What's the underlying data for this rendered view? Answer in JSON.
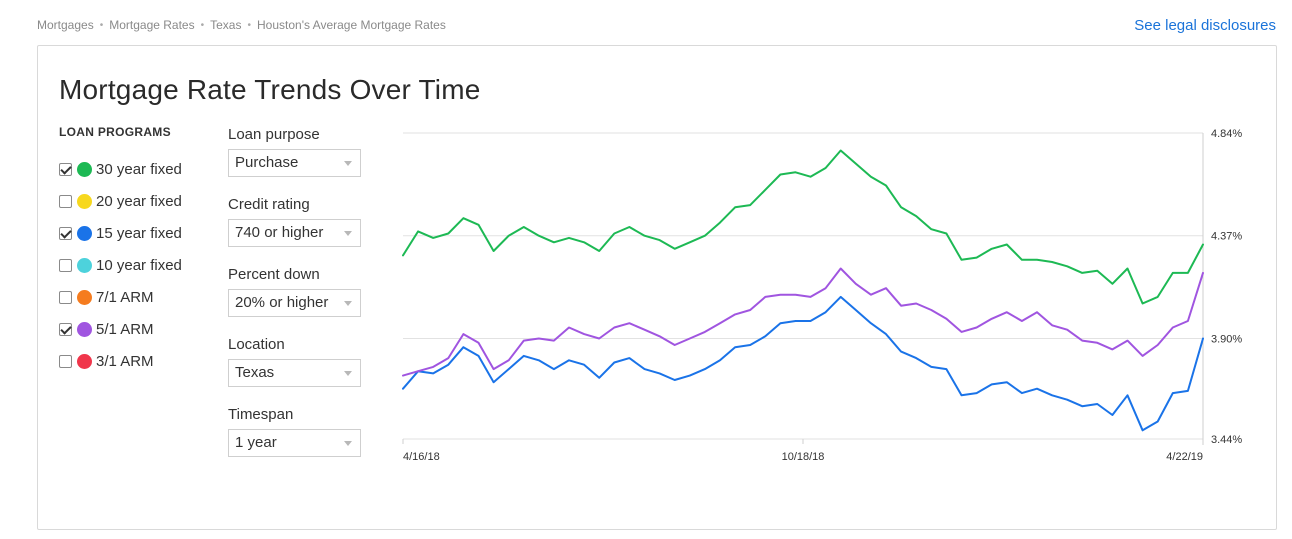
{
  "breadcrumb": [
    "Mortgages",
    "Mortgage Rates",
    "Texas",
    "Houston's Average Mortgage Rates"
  ],
  "legal_link": "See legal disclosures",
  "title": "Mortgage Rate Trends Over Time",
  "loan_programs": {
    "heading": "LOAN PROGRAMS",
    "items": [
      {
        "label": "30 year fixed",
        "checked": true,
        "color": "#1db954"
      },
      {
        "label": "20 year fixed",
        "checked": false,
        "color": "#f7d81e"
      },
      {
        "label": "15 year fixed",
        "checked": true,
        "color": "#1a73e8"
      },
      {
        "label": "10 year fixed",
        "checked": false,
        "color": "#4dd2dc"
      },
      {
        "label": "7/1 ARM",
        "checked": false,
        "color": "#f57c1f"
      },
      {
        "label": "5/1 ARM",
        "checked": true,
        "color": "#a055e0"
      },
      {
        "label": "3/1 ARM",
        "checked": false,
        "color": "#f0364b"
      }
    ]
  },
  "filters": [
    {
      "label": "Loan purpose",
      "value": "Purchase"
    },
    {
      "label": "Credit rating",
      "value": "740 or higher"
    },
    {
      "label": "Percent down",
      "value": "20% or higher"
    },
    {
      "label": "Location",
      "value": "Texas"
    },
    {
      "label": "Timespan",
      "value": "1 year"
    }
  ],
  "chart_data": {
    "type": "line",
    "ylim": [
      3.44,
      4.84
    ],
    "y_ticks": [
      "4.84%",
      "4.37%",
      "3.90%",
      "3.44%"
    ],
    "x_ticks": [
      "4/16/18",
      "10/18/18",
      "4/22/19"
    ],
    "grid": true,
    "series": [
      {
        "program": "30 year fixed",
        "color": "#1db954",
        "values": [
          4.28,
          4.39,
          4.36,
          4.38,
          4.45,
          4.42,
          4.3,
          4.37,
          4.41,
          4.37,
          4.34,
          4.36,
          4.34,
          4.3,
          4.38,
          4.41,
          4.37,
          4.35,
          4.31,
          4.34,
          4.37,
          4.43,
          4.5,
          4.51,
          4.58,
          4.65,
          4.66,
          4.64,
          4.68,
          4.76,
          4.7,
          4.64,
          4.6,
          4.5,
          4.46,
          4.4,
          4.38,
          4.26,
          4.27,
          4.31,
          4.33,
          4.26,
          4.26,
          4.25,
          4.23,
          4.2,
          4.21,
          4.15,
          4.22,
          4.06,
          4.09,
          4.2,
          4.2,
          4.33
        ]
      },
      {
        "program": "15 year fixed",
        "color": "#1a73e8",
        "values": [
          3.67,
          3.75,
          3.74,
          3.78,
          3.86,
          3.82,
          3.7,
          3.76,
          3.82,
          3.8,
          3.76,
          3.8,
          3.78,
          3.72,
          3.79,
          3.81,
          3.76,
          3.74,
          3.71,
          3.73,
          3.76,
          3.8,
          3.86,
          3.87,
          3.91,
          3.97,
          3.98,
          3.98,
          4.02,
          4.09,
          4.03,
          3.97,
          3.92,
          3.84,
          3.81,
          3.77,
          3.76,
          3.64,
          3.65,
          3.69,
          3.7,
          3.65,
          3.67,
          3.64,
          3.62,
          3.59,
          3.6,
          3.55,
          3.64,
          3.48,
          3.52,
          3.65,
          3.66,
          3.9
        ]
      },
      {
        "program": "5/1 ARM",
        "color": "#a055e0",
        "values": [
          3.73,
          3.75,
          3.77,
          3.81,
          3.92,
          3.88,
          3.76,
          3.8,
          3.89,
          3.9,
          3.89,
          3.95,
          3.92,
          3.9,
          3.95,
          3.97,
          3.94,
          3.91,
          3.87,
          3.9,
          3.93,
          3.97,
          4.01,
          4.03,
          4.09,
          4.1,
          4.1,
          4.09,
          4.13,
          4.22,
          4.15,
          4.1,
          4.13,
          4.05,
          4.06,
          4.03,
          3.99,
          3.93,
          3.95,
          3.99,
          4.02,
          3.98,
          4.02,
          3.96,
          3.94,
          3.89,
          3.88,
          3.85,
          3.89,
          3.82,
          3.87,
          3.95,
          3.98,
          4.2
        ]
      }
    ]
  }
}
